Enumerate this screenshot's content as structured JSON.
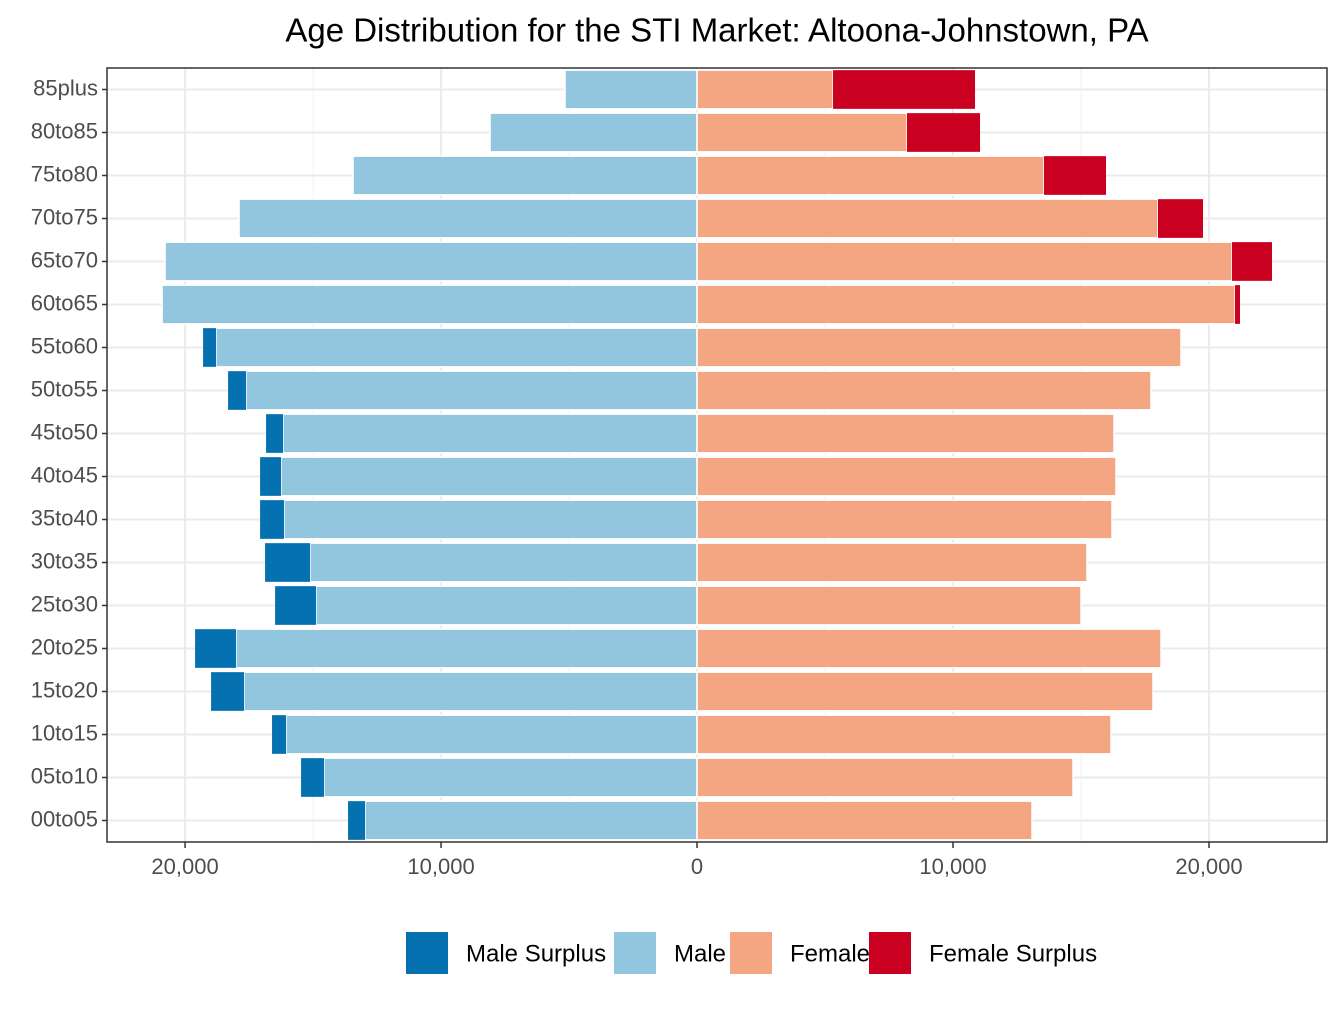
{
  "chart_data": {
    "type": "pyramid",
    "title": "Age Distribution for the STI Market: Altoona-Johnstown, PA",
    "categories": [
      "00to05",
      "05to10",
      "10to15",
      "15to20",
      "20to25",
      "25to30",
      "30to35",
      "35to40",
      "40to45",
      "45to50",
      "50to55",
      "55to60",
      "60to65",
      "65to70",
      "70to75",
      "75to80",
      "80to85",
      "85plus"
    ],
    "series": [
      {
        "name": "Male Surplus",
        "color": "#0571b0",
        "values": [
          -664,
          -899,
          -547,
          -1289,
          -1601,
          -1601,
          -1758,
          -937,
          -820,
          -664,
          -703,
          -508,
          0,
          0,
          0,
          0,
          0,
          0
        ]
      },
      {
        "name": "Male",
        "color": "#92c5de",
        "values": [
          -12969,
          -14570,
          -16055,
          -17695,
          -18008,
          -14883,
          -15117,
          -16133,
          -16250,
          -16172,
          -17617,
          -18789,
          -20898,
          -20781,
          -17891,
          -13438,
          -8086,
          -5156
        ]
      },
      {
        "name": "Female",
        "color": "#f4a582",
        "values": [
          13086,
          14688,
          16172,
          17813,
          18125,
          15000,
          15234,
          16211,
          16367,
          16289,
          17734,
          18906,
          21016,
          20898,
          18008,
          13555,
          8203,
          5313
        ]
      },
      {
        "name": "Female Surplus",
        "color": "#ca0020",
        "values": [
          0,
          0,
          0,
          0,
          0,
          0,
          0,
          0,
          0,
          0,
          0,
          0,
          195,
          1563,
          1758,
          2422,
          2852,
          5547
        ]
      }
    ],
    "xlim": [
      -23050,
      24610
    ],
    "xticks": [
      {
        "value": -20000,
        "label": "20,000"
      },
      {
        "value": -10000,
        "label": "10,000"
      },
      0,
      {
        "value": 10000,
        "label": "10,000"
      },
      {
        "value": 20000,
        "label": "20,000"
      }
    ],
    "grid": true,
    "legend": "bottom"
  }
}
